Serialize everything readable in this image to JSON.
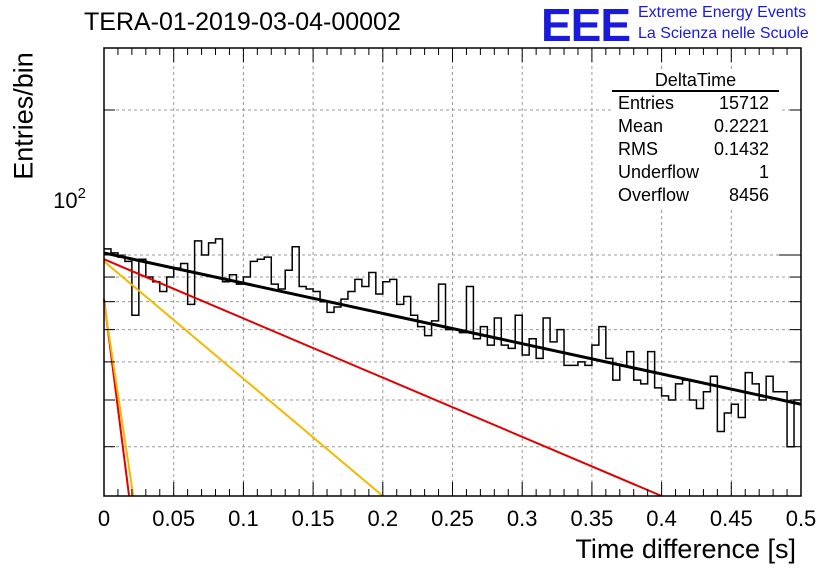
{
  "title": "TERA-01-2019-03-04-00002",
  "logo": {
    "mark": "EEE",
    "line1": "Extreme Energy Events",
    "line2": "La Scienza nelle Scuole",
    "color": "#1a1adc"
  },
  "stats_box": {
    "name": "DeltaTime",
    "rows": [
      {
        "label": "Entries",
        "value": "15712"
      },
      {
        "label": "Mean",
        "value": "0.2221"
      },
      {
        "label": "RMS",
        "value": "0.1432"
      },
      {
        "label": "Underflow",
        "value": "1"
      },
      {
        "label": "Overflow",
        "value": "8456"
      }
    ]
  },
  "chart_data": {
    "type": "line",
    "title": "TERA-01-2019-03-04-00002",
    "xlabel": "Time difference [s]",
    "ylabel": "Entries/bin",
    "xlim": [
      0,
      0.5
    ],
    "ylim": [
      31.6,
      269
    ],
    "y_scale": "log",
    "grid": true,
    "x_ticks": [
      "0",
      "0.05",
      "0.1",
      "0.15",
      "0.2",
      "0.25",
      "0.3",
      "0.35",
      "0.4",
      "0.45",
      "0.5"
    ],
    "y_tick_label": "10^2",
    "histogram": {
      "name": "DeltaTime",
      "color": "#000000",
      "bin_edges": [
        0,
        0.005
      ],
      "values": [
        103,
        101,
        99,
        97,
        75,
        98,
        90,
        88,
        84,
        90,
        94,
        96,
        79,
        107,
        100,
        106,
        108,
        88,
        91,
        87,
        90,
        97,
        98,
        99,
        87,
        85,
        93,
        104,
        86,
        85,
        84,
        80,
        76,
        78,
        81,
        84,
        89,
        86,
        92,
        83,
        88,
        89,
        79,
        82,
        75,
        71,
        68,
        73,
        87,
        70,
        70,
        69,
        86,
        67,
        71,
        65,
        74,
        65,
        64,
        75,
        62,
        67,
        61,
        74,
        66,
        70,
        59,
        59,
        60,
        59,
        65,
        71,
        61,
        55,
        59,
        63,
        55,
        54,
        63,
        53,
        51,
        50,
        54,
        55,
        50,
        48,
        52,
        56,
        43,
        47,
        49,
        46,
        57,
        54,
        50,
        56,
        52,
        52,
        40,
        50,
        51,
        51,
        54,
        52,
        53,
        53,
        50,
        48,
        44,
        51,
        49,
        50,
        44,
        48,
        58,
        55,
        55,
        54,
        50,
        46,
        51,
        55,
        51,
        46,
        55,
        54,
        50,
        46,
        51,
        48,
        52,
        43,
        48,
        52,
        49,
        53,
        48,
        48,
        54,
        49,
        53,
        52,
        53,
        51,
        48,
        52,
        46,
        52,
        47,
        52,
        47,
        52,
        49,
        52,
        44,
        47,
        52,
        49,
        46,
        48,
        48,
        49,
        51,
        48,
        50,
        48,
        53,
        46,
        40,
        44,
        41,
        48,
        46,
        45,
        44,
        46,
        47,
        44,
        43,
        47,
        43,
        42,
        43,
        40,
        41,
        41,
        41,
        43,
        43,
        43,
        40,
        42,
        43,
        44,
        38,
        45,
        40,
        42,
        43,
        45,
        43,
        43,
        40,
        44,
        42,
        38,
        42,
        38,
        45,
        41,
        41,
        42,
        39,
        40,
        37,
        38,
        39,
        42,
        38,
        39,
        41,
        39,
        37,
        42,
        38,
        38,
        41,
        42,
        40,
        40,
        40,
        38,
        39,
        42,
        41,
        42,
        40,
        41,
        40,
        39,
        41,
        41,
        39,
        41,
        40,
        38,
        38,
        42,
        39,
        41,
        39,
        40,
        38,
        40,
        37,
        41,
        37,
        42,
        37,
        40,
        40,
        39,
        40,
        38,
        37,
        39,
        38,
        41,
        36,
        41,
        36,
        39,
        38,
        38,
        36,
        38,
        39,
        40,
        37,
        39,
        39,
        36,
        37,
        36,
        38,
        38,
        36,
        36,
        37,
        37,
        36,
        39,
        36,
        37,
        35,
        38,
        36,
        37,
        36,
        35,
        36,
        37,
        35,
        38,
        36,
        37,
        38,
        37,
        35,
        36,
        37,
        36,
        38,
        37,
        36,
        35
      ]
    },
    "series": [
      {
        "name": "",
        "color": "#000000",
        "x": [
          0,
          0.5
        ],
        "y": [
          101,
          49
        ]
      },
      {
        "name": "",
        "color": "#e00000",
        "x": [
          0,
          0.4
        ],
        "y": [
          98,
          31.6
        ]
      },
      {
        "name": "",
        "color": "#f5b800",
        "x": [
          0,
          0.2
        ],
        "y": [
          97,
          31.6
        ]
      },
      {
        "name": "",
        "color": "#e00000",
        "x": [
          0,
          0.018
        ],
        "y": [
          81,
          31.6
        ]
      },
      {
        "name": "",
        "color": "#f5b800",
        "x": [
          0,
          0.021
        ],
        "y": [
          80,
          31.6
        ]
      }
    ]
  }
}
